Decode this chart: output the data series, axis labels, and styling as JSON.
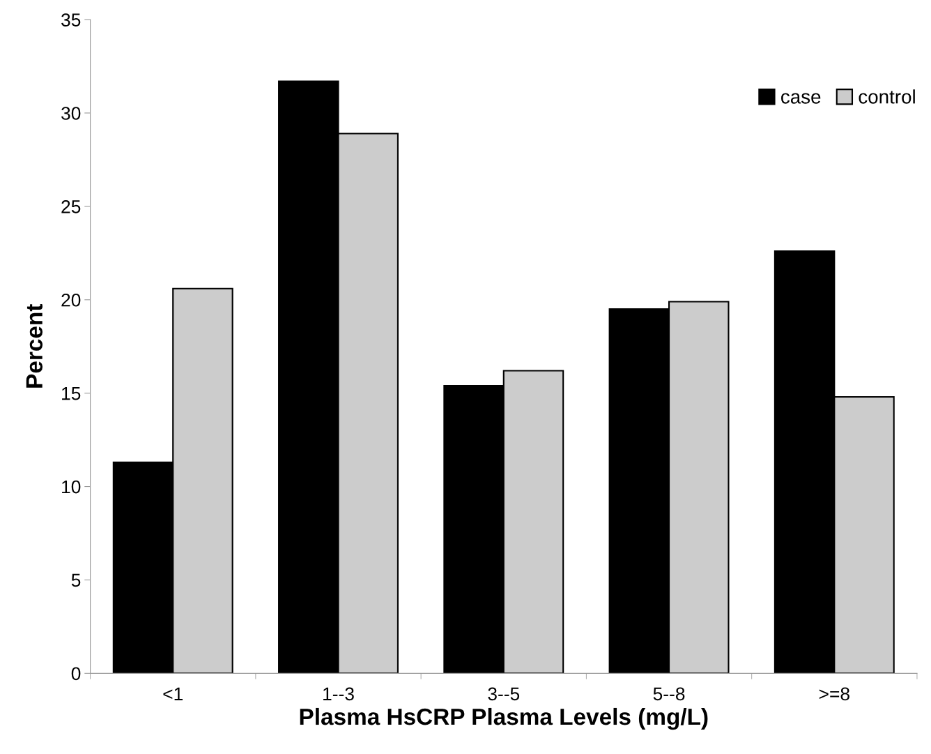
{
  "chart_data": {
    "type": "bar",
    "xlabel": "Plasma HsCRP Plasma Levels (mg/L)",
    "ylabel": "Percent",
    "categories": [
      "<1",
      "1--3",
      "3--5",
      "5--8",
      ">=8"
    ],
    "series": [
      {
        "name": "case",
        "color": "#000000",
        "values": [
          11.3,
          31.7,
          15.4,
          19.5,
          22.6
        ]
      },
      {
        "name": "control",
        "color": "#cccccc",
        "values": [
          20.6,
          28.9,
          16.2,
          19.9,
          14.8
        ]
      }
    ],
    "ylim": [
      0,
      35
    ],
    "yticks": [
      0,
      5,
      10,
      15,
      20,
      25,
      30,
      35
    ],
    "grid": false,
    "legend": "top right"
  }
}
